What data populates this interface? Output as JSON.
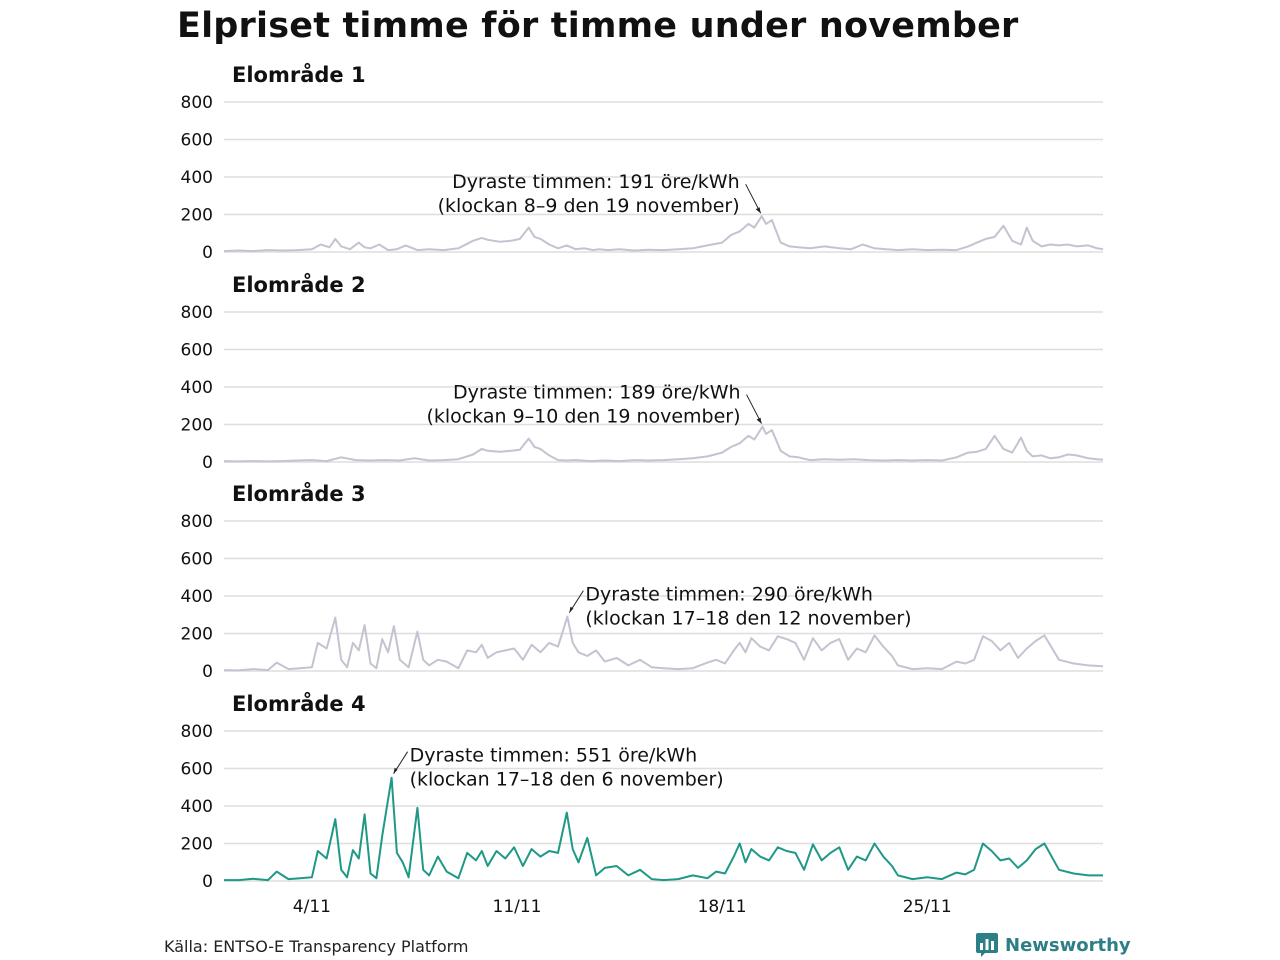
{
  "title": "Elpriset timme för timme under november",
  "source": "Källa: ENTSO-E Transparency Platform",
  "brand": "Newsworthy",
  "colors": {
    "muted_line": "#c3c3d2",
    "highlight_line": "#1f9886",
    "grid": "#dedede",
    "brand": "#2c7f86"
  },
  "chart_data": [
    {
      "type": "line",
      "title": "Elområde 1",
      "ylim": [
        0,
        800
      ],
      "yticks": [
        0,
        200,
        400,
        600,
        800
      ],
      "xlim": [
        1,
        31
      ],
      "xticks": [
        4,
        11,
        18,
        25
      ],
      "xtick_labels": [
        "4/11",
        "11/11",
        "18/11",
        "25/11"
      ],
      "highlight": false,
      "annotation": {
        "lines": [
          "Dyraste timmen: 191 öre/kWh",
          "(klockan 8–9 den 19 november)"
        ],
        "x": 19.35,
        "y": 191,
        "align": "right"
      },
      "series": [
        {
          "x": [
            1,
            1.5,
            2,
            2.5,
            3,
            3.5,
            4,
            4.3,
            4.6,
            4.8,
            5,
            5.3,
            5.6,
            5.8,
            6,
            6.3,
            6.6,
            6.9,
            7.2,
            7.6,
            8,
            8.5,
            9,
            9.5,
            9.8,
            10,
            10.4,
            10.8,
            11.1,
            11.4,
            11.6,
            11.8,
            12.1,
            12.4,
            12.7,
            13,
            13.3,
            13.6,
            13.8,
            14.1,
            14.5,
            15,
            15.5,
            16,
            16.5,
            17,
            17.5,
            18,
            18.3,
            18.6,
            18.9,
            19.1,
            19.35,
            19.5,
            19.7,
            20,
            20.3,
            20.6,
            21,
            21.5,
            22,
            22.4,
            22.8,
            23.2,
            23.6,
            24,
            24.5,
            25,
            25.5,
            26,
            26.4,
            26.7,
            27,
            27.3,
            27.6,
            27.9,
            28.2,
            28.4,
            28.6,
            28.9,
            29.2,
            29.5,
            29.8,
            30.1,
            30.5,
            30.8,
            31
          ],
          "y": [
            5,
            8,
            5,
            10,
            8,
            10,
            15,
            40,
            25,
            70,
            30,
            15,
            50,
            25,
            20,
            40,
            10,
            15,
            35,
            10,
            15,
            10,
            20,
            60,
            75,
            65,
            55,
            60,
            70,
            130,
            80,
            70,
            40,
            20,
            35,
            15,
            20,
            10,
            15,
            10,
            15,
            8,
            12,
            10,
            15,
            20,
            35,
            50,
            90,
            110,
            150,
            130,
            191,
            150,
            170,
            50,
            30,
            25,
            20,
            30,
            20,
            15,
            40,
            20,
            15,
            10,
            15,
            10,
            12,
            10,
            30,
            50,
            70,
            80,
            140,
            60,
            40,
            130,
            60,
            30,
            40,
            35,
            40,
            30,
            35,
            20,
            15
          ]
        }
      ]
    },
    {
      "type": "line",
      "title": "Elområde 2",
      "ylim": [
        0,
        800
      ],
      "yticks": [
        0,
        200,
        400,
        600,
        800
      ],
      "xlim": [
        1,
        31
      ],
      "xticks": [
        4,
        11,
        18,
        25
      ],
      "xtick_labels": [
        "4/11",
        "11/11",
        "18/11",
        "25/11"
      ],
      "highlight": false,
      "annotation": {
        "lines": [
          "Dyraste timmen: 189 öre/kWh",
          "(klockan 9–10 den 19 november)"
        ],
        "x": 19.38,
        "y": 189,
        "align": "right"
      },
      "series": [
        {
          "x": [
            1,
            1.5,
            2,
            2.5,
            3,
            3.5,
            4,
            4.5,
            5,
            5.5,
            6,
            6.5,
            7,
            7.5,
            8,
            8.5,
            9,
            9.5,
            9.8,
            10,
            10.4,
            10.8,
            11.1,
            11.4,
            11.6,
            11.8,
            12.1,
            12.4,
            12.7,
            13,
            13.5,
            14,
            14.5,
            15,
            15.5,
            16,
            16.5,
            17,
            17.5,
            18,
            18.3,
            18.6,
            18.9,
            19.1,
            19.38,
            19.5,
            19.7,
            20,
            20.3,
            20.6,
            21,
            21.5,
            22,
            22.5,
            23,
            23.5,
            24,
            24.5,
            25,
            25.5,
            26,
            26.4,
            26.7,
            27,
            27.3,
            27.6,
            27.9,
            28.2,
            28.4,
            28.6,
            28.9,
            29.2,
            29.5,
            29.8,
            30.1,
            30.5,
            30.8,
            31
          ],
          "y": [
            5,
            3,
            5,
            3,
            5,
            8,
            10,
            5,
            25,
            10,
            8,
            10,
            8,
            20,
            8,
            10,
            15,
            40,
            70,
            60,
            55,
            60,
            65,
            125,
            80,
            70,
            35,
            10,
            8,
            10,
            5,
            8,
            5,
            10,
            8,
            10,
            15,
            20,
            30,
            50,
            80,
            100,
            140,
            120,
            189,
            150,
            170,
            60,
            30,
            25,
            10,
            15,
            12,
            15,
            10,
            8,
            10,
            8,
            10,
            8,
            25,
            50,
            55,
            70,
            140,
            70,
            50,
            130,
            60,
            30,
            35,
            20,
            25,
            40,
            35,
            20,
            15,
            12
          ]
        }
      ]
    },
    {
      "type": "line",
      "title": "Elområde 3",
      "ylim": [
        0,
        800
      ],
      "yticks": [
        0,
        200,
        400,
        600,
        800
      ],
      "xlim": [
        1,
        31
      ],
      "xticks": [
        4,
        11,
        18,
        25
      ],
      "xtick_labels": [
        "4/11",
        "11/11",
        "18/11",
        "25/11"
      ],
      "highlight": false,
      "annotation": {
        "lines": [
          "Dyraste timmen: 290 öre/kWh",
          "(klockan 17–18 den 12 november)"
        ],
        "x": 12.72,
        "y": 290,
        "align": "left"
      },
      "series": [
        {
          "x": [
            1,
            1.5,
            2,
            2.5,
            2.8,
            3.2,
            3.6,
            4,
            4.2,
            4.5,
            4.8,
            5,
            5.2,
            5.4,
            5.6,
            5.8,
            6,
            6.2,
            6.4,
            6.6,
            6.8,
            7,
            7.3,
            7.6,
            7.8,
            8,
            8.3,
            8.6,
            9,
            9.3,
            9.6,
            9.8,
            10,
            10.3,
            10.6,
            10.9,
            11.2,
            11.5,
            11.8,
            12.1,
            12.4,
            12.72,
            12.9,
            13.1,
            13.4,
            13.7,
            14,
            14.4,
            14.8,
            15.2,
            15.6,
            16,
            16.5,
            17,
            17.5,
            17.8,
            18.1,
            18.4,
            18.6,
            18.8,
            19,
            19.3,
            19.6,
            19.9,
            20.2,
            20.5,
            20.8,
            21.1,
            21.4,
            21.7,
            22,
            22.3,
            22.6,
            22.9,
            23.2,
            23.5,
            23.8,
            24,
            24.5,
            25,
            25.5,
            26,
            26.3,
            26.6,
            26.9,
            27.2,
            27.5,
            27.8,
            28.1,
            28.4,
            28.7,
            29,
            29.5,
            30,
            30.5,
            31
          ],
          "y": [
            5,
            3,
            10,
            5,
            45,
            10,
            15,
            20,
            150,
            120,
            285,
            60,
            20,
            150,
            110,
            245,
            40,
            15,
            170,
            100,
            240,
            60,
            20,
            210,
            60,
            30,
            60,
            50,
            15,
            110,
            100,
            140,
            70,
            100,
            110,
            120,
            60,
            140,
            100,
            150,
            130,
            290,
            150,
            100,
            80,
            110,
            50,
            70,
            30,
            60,
            20,
            15,
            10,
            15,
            45,
            60,
            40,
            110,
            150,
            100,
            175,
            130,
            110,
            185,
            170,
            150,
            60,
            175,
            110,
            150,
            170,
            60,
            120,
            100,
            190,
            130,
            80,
            30,
            10,
            15,
            10,
            50,
            40,
            60,
            185,
            160,
            110,
            150,
            70,
            120,
            160,
            190,
            60,
            40,
            30,
            25
          ]
        }
      ]
    },
    {
      "type": "line",
      "title": "Elområde 4",
      "ylim": [
        0,
        800
      ],
      "yticks": [
        0,
        200,
        400,
        600,
        800
      ],
      "xlim": [
        1,
        31
      ],
      "xticks": [
        4,
        11,
        18,
        25
      ],
      "xtick_labels": [
        "4/11",
        "11/11",
        "18/11",
        "25/11"
      ],
      "highlight": true,
      "annotation": {
        "lines": [
          "Dyraste timmen: 551 öre/kWh",
          "(klockan 17–18 den 6 november)"
        ],
        "x": 6.72,
        "y": 551,
        "align": "left"
      },
      "series": [
        {
          "x": [
            1,
            1.5,
            2,
            2.5,
            2.8,
            3.2,
            3.6,
            4,
            4.2,
            4.5,
            4.8,
            5,
            5.2,
            5.4,
            5.6,
            5.8,
            6,
            6.2,
            6.4,
            6.72,
            6.9,
            7.1,
            7.3,
            7.6,
            7.8,
            8,
            8.3,
            8.6,
            9,
            9.3,
            9.6,
            9.8,
            10,
            10.3,
            10.6,
            10.9,
            11.2,
            11.5,
            11.8,
            12.1,
            12.4,
            12.7,
            12.9,
            13.1,
            13.4,
            13.7,
            14,
            14.4,
            14.8,
            15.2,
            15.6,
            16,
            16.5,
            17,
            17.5,
            17.8,
            18.1,
            18.4,
            18.6,
            18.8,
            19,
            19.3,
            19.6,
            19.9,
            20.2,
            20.5,
            20.8,
            21.1,
            21.4,
            21.7,
            22,
            22.3,
            22.6,
            22.9,
            23.2,
            23.5,
            23.8,
            24,
            24.5,
            25,
            25.5,
            26,
            26.3,
            26.6,
            26.9,
            27.2,
            27.5,
            27.8,
            28.1,
            28.4,
            28.7,
            29,
            29.5,
            30,
            30.5,
            31
          ],
          "y": [
            5,
            5,
            12,
            5,
            50,
            10,
            15,
            20,
            160,
            120,
            330,
            60,
            20,
            165,
            120,
            355,
            40,
            15,
            240,
            551,
            150,
            100,
            20,
            390,
            60,
            30,
            130,
            50,
            15,
            150,
            110,
            160,
            80,
            160,
            120,
            180,
            80,
            170,
            130,
            160,
            150,
            365,
            170,
            100,
            230,
            30,
            70,
            80,
            30,
            60,
            10,
            5,
            10,
            30,
            15,
            50,
            40,
            130,
            200,
            100,
            170,
            130,
            110,
            180,
            160,
            150,
            60,
            195,
            110,
            150,
            180,
            60,
            130,
            110,
            200,
            130,
            80,
            30,
            10,
            20,
            10,
            45,
            35,
            60,
            200,
            160,
            110,
            120,
            70,
            110,
            170,
            200,
            60,
            40,
            30,
            30
          ]
        }
      ]
    }
  ]
}
